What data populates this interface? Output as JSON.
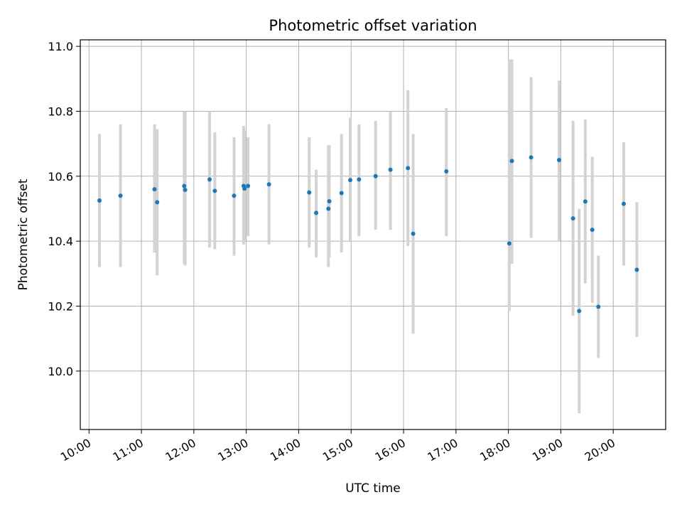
{
  "chart_data": {
    "type": "scatter",
    "title": "Photometric offset variation",
    "xlabel": "UTC time",
    "ylabel": "Photometric offset",
    "xlim": [
      "09:50",
      "21:00"
    ],
    "ylim": [
      9.82,
      11.02
    ],
    "grid": true,
    "x_ticks": [
      "10:00",
      "11:00",
      "12:00",
      "13:00",
      "14:00",
      "15:00",
      "16:00",
      "17:00",
      "18:00",
      "19:00",
      "20:00"
    ],
    "y_ticks": [
      "10.0",
      "10.2",
      "10.4",
      "10.6",
      "10.8",
      "11.0"
    ],
    "point_color": "#1f77b4",
    "errorbar_color": "#d3d3d3",
    "points": [
      {
        "x": "10:12",
        "y": 10.525,
        "lo": 10.32,
        "hi": 10.73
      },
      {
        "x": "10:36",
        "y": 10.54,
        "lo": 10.32,
        "hi": 10.76
      },
      {
        "x": "11:15",
        "y": 10.56,
        "lo": 10.365,
        "hi": 10.76
      },
      {
        "x": "11:18",
        "y": 10.52,
        "lo": 10.295,
        "hi": 10.745
      },
      {
        "x": "11:49",
        "y": 10.57,
        "lo": 10.33,
        "hi": 10.8
      },
      {
        "x": "11:50",
        "y": 10.558,
        "lo": 10.325,
        "hi": 10.8
      },
      {
        "x": "12:18",
        "y": 10.59,
        "lo": 10.38,
        "hi": 10.8
      },
      {
        "x": "12:24",
        "y": 10.555,
        "lo": 10.375,
        "hi": 10.735
      },
      {
        "x": "12:46",
        "y": 10.54,
        "lo": 10.355,
        "hi": 10.72
      },
      {
        "x": "12:57",
        "y": 10.57,
        "lo": 10.39,
        "hi": 10.755
      },
      {
        "x": "12:58",
        "y": 10.562,
        "lo": 10.4,
        "hi": 10.74
      },
      {
        "x": "13:02",
        "y": 10.57,
        "lo": 10.415,
        "hi": 10.72
      },
      {
        "x": "13:26",
        "y": 10.575,
        "lo": 10.39,
        "hi": 10.76
      },
      {
        "x": "14:12",
        "y": 10.55,
        "lo": 10.38,
        "hi": 10.72
      },
      {
        "x": "14:20",
        "y": 10.487,
        "lo": 10.35,
        "hi": 10.62
      },
      {
        "x": "14:34",
        "y": 10.5,
        "lo": 10.32,
        "hi": 10.695
      },
      {
        "x": "14:35",
        "y": 10.523,
        "lo": 10.35,
        "hi": 10.695
      },
      {
        "x": "14:49",
        "y": 10.548,
        "lo": 10.365,
        "hi": 10.73
      },
      {
        "x": "14:59",
        "y": 10.588,
        "lo": 10.4,
        "hi": 10.78
      },
      {
        "x": "15:09",
        "y": 10.59,
        "lo": 10.415,
        "hi": 10.76
      },
      {
        "x": "15:28",
        "y": 10.6,
        "lo": 10.435,
        "hi": 10.77
      },
      {
        "x": "15:45",
        "y": 10.62,
        "lo": 10.435,
        "hi": 10.8
      },
      {
        "x": "16:05",
        "y": 10.625,
        "lo": 10.385,
        "hi": 10.865
      },
      {
        "x": "16:11",
        "y": 10.423,
        "lo": 10.115,
        "hi": 10.73
      },
      {
        "x": "16:49",
        "y": 10.615,
        "lo": 10.415,
        "hi": 10.81
      },
      {
        "x": "18:01",
        "y": 10.393,
        "lo": 10.185,
        "hi": 10.96
      },
      {
        "x": "18:04",
        "y": 10.647,
        "lo": 10.33,
        "hi": 10.96
      },
      {
        "x": "18:26",
        "y": 10.658,
        "lo": 10.41,
        "hi": 10.905
      },
      {
        "x": "18:58",
        "y": 10.65,
        "lo": 10.4,
        "hi": 10.895
      },
      {
        "x": "19:14",
        "y": 10.47,
        "lo": 10.17,
        "hi": 10.77
      },
      {
        "x": "19:21",
        "y": 10.185,
        "lo": 9.87,
        "hi": 10.5
      },
      {
        "x": "19:28",
        "y": 10.522,
        "lo": 10.27,
        "hi": 10.775
      },
      {
        "x": "19:36",
        "y": 10.435,
        "lo": 10.21,
        "hi": 10.66
      },
      {
        "x": "19:43",
        "y": 10.198,
        "lo": 10.04,
        "hi": 10.355
      },
      {
        "x": "20:12",
        "y": 10.515,
        "lo": 10.325,
        "hi": 10.705
      },
      {
        "x": "20:27",
        "y": 10.312,
        "lo": 10.105,
        "hi": 10.52
      }
    ]
  }
}
